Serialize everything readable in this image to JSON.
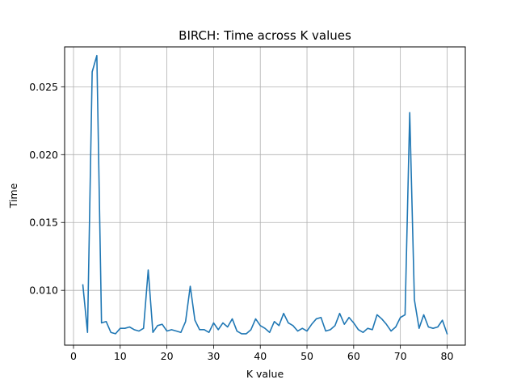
{
  "chart_data": {
    "type": "line",
    "title": "BIRCH: Time across K values",
    "xlabel": "K value",
    "ylabel": "Time",
    "xlim": [
      -1.9,
      83.9
    ],
    "ylim": [
      0.00596,
      0.02794
    ],
    "x_ticks": [
      0,
      10,
      20,
      30,
      40,
      50,
      60,
      70,
      80
    ],
    "x_tick_labels": [
      "0",
      "10",
      "20",
      "30",
      "40",
      "50",
      "60",
      "70",
      "80"
    ],
    "y_ticks": [
      0.01,
      0.015,
      0.02,
      0.025
    ],
    "y_tick_labels": [
      "0.010",
      "0.015",
      "0.020",
      "0.025"
    ],
    "grid": true,
    "line_color": "#1f77b4",
    "series": [
      {
        "x": [
          2,
          3,
          4,
          5,
          6,
          7,
          8,
          9,
          10,
          11,
          12,
          13,
          14,
          15,
          16,
          17,
          18,
          19,
          20,
          21,
          22,
          23,
          24,
          25,
          26,
          27,
          28,
          29,
          30,
          31,
          32,
          33,
          34,
          35,
          36,
          37,
          38,
          39,
          40,
          41,
          42,
          43,
          44,
          45,
          46,
          47,
          48,
          49,
          50,
          51,
          52,
          53,
          54,
          55,
          56,
          57,
          58,
          59,
          60,
          61,
          62,
          63,
          64,
          65,
          66,
          67,
          68,
          69,
          70,
          71,
          72,
          73,
          74,
          75,
          76,
          77,
          78,
          79,
          80
        ],
        "values": [
          0.0104,
          0.0069,
          0.0261,
          0.0273,
          0.0076,
          0.0077,
          0.0069,
          0.0068,
          0.0072,
          0.0072,
          0.0073,
          0.0071,
          0.007,
          0.0072,
          0.0115,
          0.0069,
          0.0074,
          0.0075,
          0.007,
          0.0071,
          0.007,
          0.0069,
          0.0077,
          0.0103,
          0.0078,
          0.0071,
          0.0071,
          0.0069,
          0.0076,
          0.0071,
          0.0076,
          0.0073,
          0.0079,
          0.007,
          0.0068,
          0.0068,
          0.0071,
          0.0079,
          0.0074,
          0.0072,
          0.0069,
          0.0077,
          0.0074,
          0.0083,
          0.0076,
          0.0074,
          0.007,
          0.0072,
          0.007,
          0.0075,
          0.0079,
          0.008,
          0.007,
          0.0071,
          0.0074,
          0.0083,
          0.0075,
          0.008,
          0.0076,
          0.0071,
          0.0069,
          0.0072,
          0.0071,
          0.0082,
          0.0079,
          0.0075,
          0.007,
          0.0073,
          0.008,
          0.0082,
          0.0231,
          0.0093,
          0.0072,
          0.0082,
          0.0073,
          0.0072,
          0.0073,
          0.0078,
          0.0068
        ]
      }
    ]
  }
}
